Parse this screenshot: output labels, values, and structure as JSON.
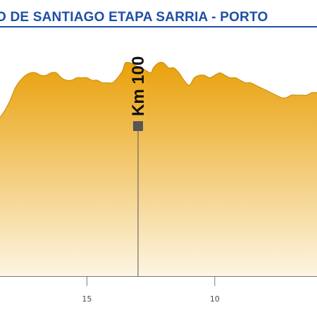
{
  "title": "O DE SANTIAGO   ETAPA SARRIA - PORTO",
  "chart_data": {
    "type": "area",
    "x_reversed": true,
    "xlim": [
      18.4,
      6.0
    ],
    "ylim": [
      0,
      1
    ],
    "x_ticks": [
      {
        "value": 15,
        "label": "15"
      },
      {
        "value": 10,
        "label": "10"
      }
    ],
    "marker": {
      "x": 13.0,
      "label": "Km 100"
    },
    "colors": {
      "fill_top": "#e9a10b",
      "fill_bottom": "#fdf5e3",
      "edge": "#c98600",
      "marker": "#555555"
    },
    "profile": [
      [
        18.4,
        0.64
      ],
      [
        18.2,
        0.67
      ],
      [
        18.0,
        0.71
      ],
      [
        17.8,
        0.76
      ],
      [
        17.6,
        0.79
      ],
      [
        17.4,
        0.81
      ],
      [
        17.2,
        0.82
      ],
      [
        17.0,
        0.82
      ],
      [
        16.8,
        0.81
      ],
      [
        16.6,
        0.81
      ],
      [
        16.4,
        0.82
      ],
      [
        16.2,
        0.82
      ],
      [
        16.0,
        0.8
      ],
      [
        15.8,
        0.79
      ],
      [
        15.6,
        0.79
      ],
      [
        15.4,
        0.8
      ],
      [
        15.2,
        0.8
      ],
      [
        15.0,
        0.8
      ],
      [
        14.8,
        0.79
      ],
      [
        14.6,
        0.79
      ],
      [
        14.4,
        0.78
      ],
      [
        14.2,
        0.78
      ],
      [
        14.0,
        0.78
      ],
      [
        13.8,
        0.8
      ],
      [
        13.6,
        0.83
      ],
      [
        13.5,
        0.86
      ],
      [
        13.3,
        0.86
      ],
      [
        13.1,
        0.85
      ],
      [
        12.9,
        0.84
      ],
      [
        12.7,
        0.83
      ],
      [
        12.5,
        0.82
      ],
      [
        12.4,
        0.84
      ],
      [
        12.2,
        0.86
      ],
      [
        12.0,
        0.86
      ],
      [
        11.8,
        0.84
      ],
      [
        11.6,
        0.84
      ],
      [
        11.4,
        0.82
      ],
      [
        11.2,
        0.79
      ],
      [
        11.0,
        0.77
      ],
      [
        10.8,
        0.8
      ],
      [
        10.6,
        0.81
      ],
      [
        10.4,
        0.81
      ],
      [
        10.2,
        0.8
      ],
      [
        10.0,
        0.81
      ],
      [
        9.8,
        0.82
      ],
      [
        9.6,
        0.81
      ],
      [
        9.4,
        0.8
      ],
      [
        9.2,
        0.8
      ],
      [
        9.0,
        0.79
      ],
      [
        8.8,
        0.78
      ],
      [
        8.6,
        0.78
      ],
      [
        8.4,
        0.77
      ],
      [
        8.2,
        0.76
      ],
      [
        8.0,
        0.75
      ],
      [
        7.8,
        0.74
      ],
      [
        7.6,
        0.73
      ],
      [
        7.4,
        0.72
      ],
      [
        7.2,
        0.72
      ],
      [
        7.0,
        0.73
      ],
      [
        6.8,
        0.73
      ],
      [
        6.6,
        0.73
      ],
      [
        6.4,
        0.73
      ],
      [
        6.2,
        0.74
      ],
      [
        6.0,
        0.74
      ]
    ]
  }
}
